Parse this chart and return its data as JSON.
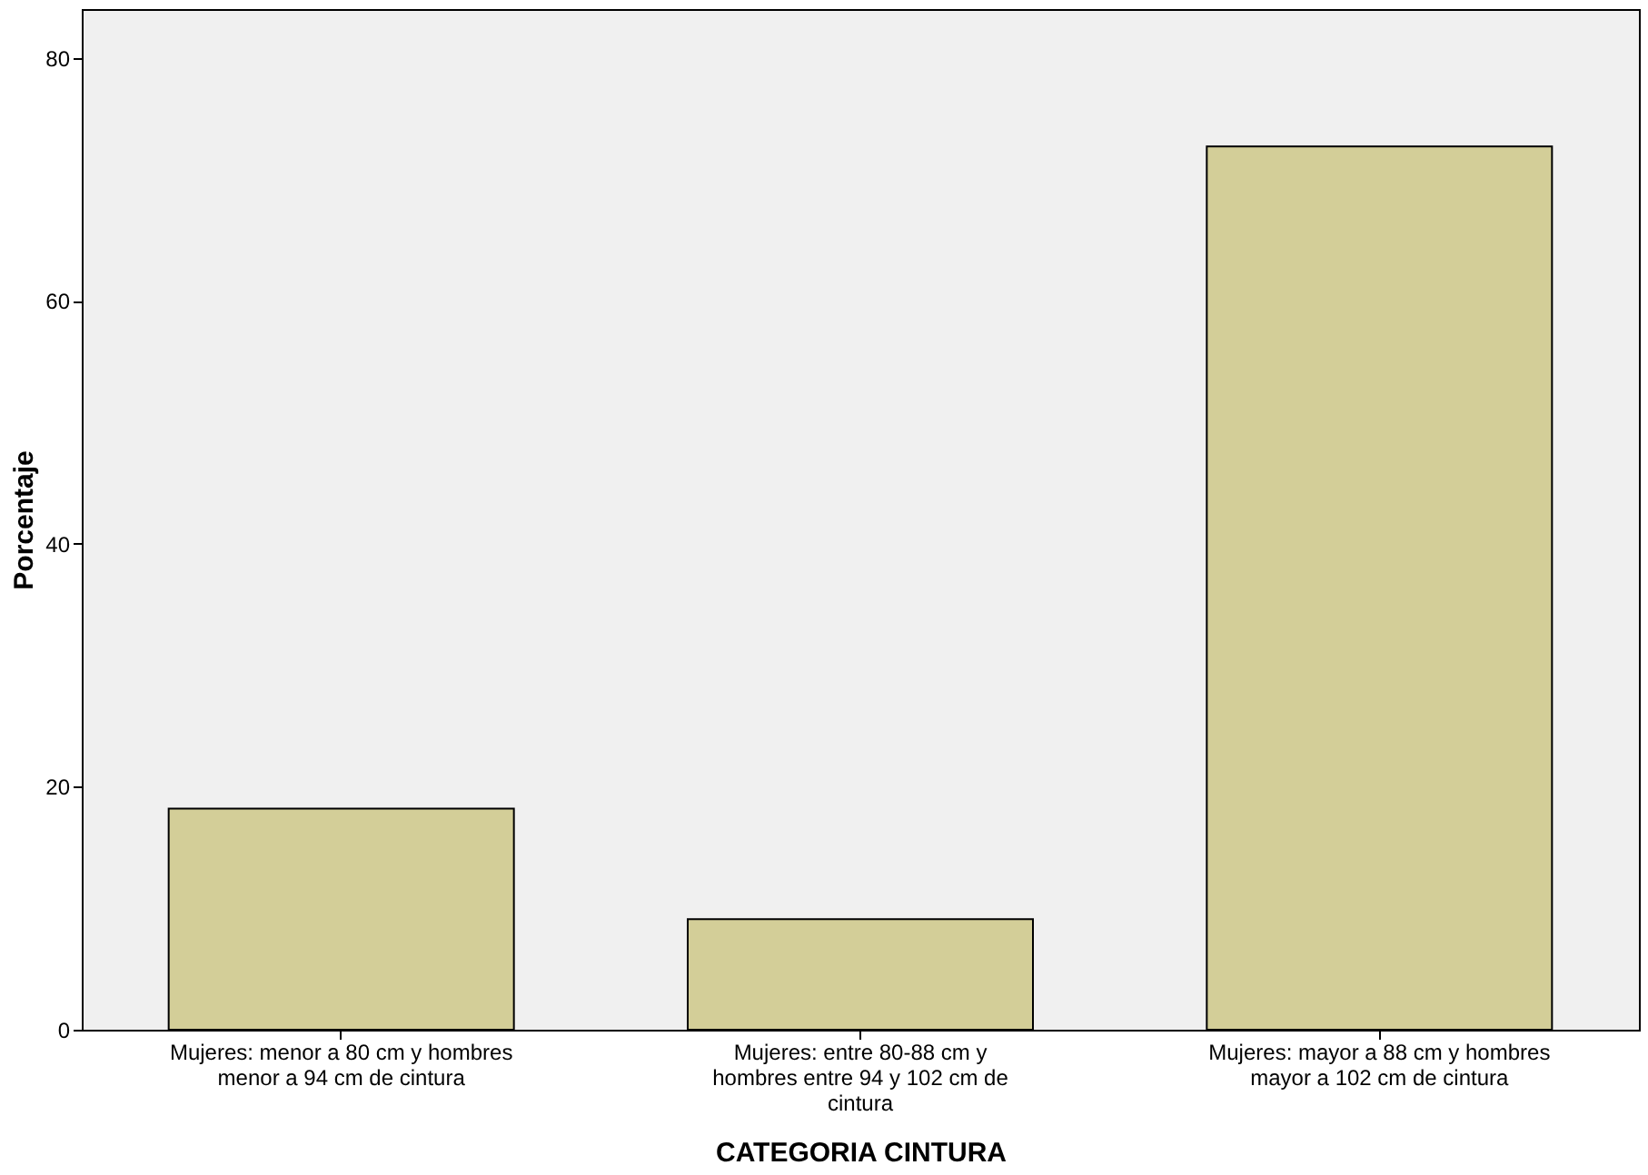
{
  "chart_data": {
    "type": "bar",
    "xlabel": "CATEGORIA CINTURA",
    "ylabel": "Porcentaje",
    "categories": [
      "Mujeres: menor a 80 cm y hombres\nmenor a 94 cm de cintura",
      "Mujeres: entre 80-88 cm y\nhombres entre 94 y 102 cm de\ncintura",
      "Mujeres: mayor a 88 cm y hombres\nmayor a 102 cm de cintura"
    ],
    "values": [
      18.2,
      9.1,
      72.7
    ],
    "color": "#d3ce98",
    "ylim": [
      0,
      84
    ],
    "yticks": [
      0,
      20,
      40,
      60,
      80
    ],
    "grid": false
  }
}
